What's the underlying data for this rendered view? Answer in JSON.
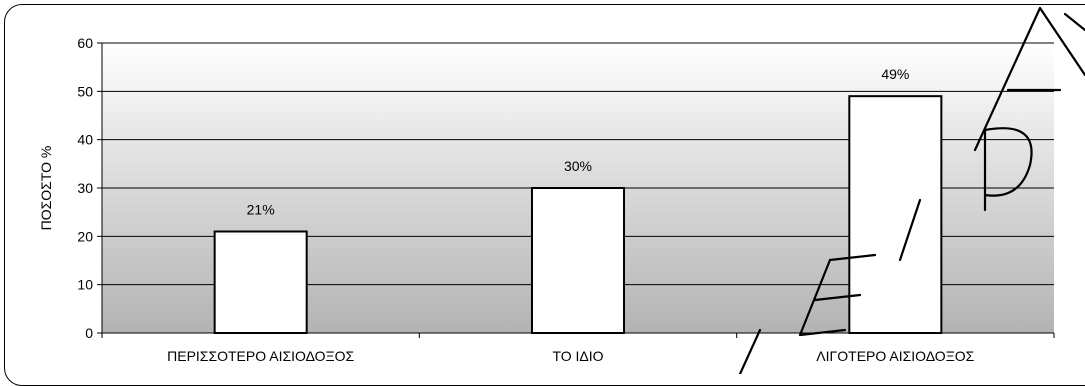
{
  "chart_data": {
    "type": "bar",
    "categories": [
      "ΠΕΡΙΣΣΟΤΕΡΟ ΑΙΣΙΟΔΟΞΟΣ",
      "ΤΟ ΙΔΙΟ",
      "ΛΙΓΟΤΕΡΟ ΑΙΣΙΟΔΟΞΟΣ"
    ],
    "values": [
      21,
      30,
      49
    ],
    "data_labels": [
      "21%",
      "30%",
      "49%"
    ],
    "title": "",
    "xlabel": "",
    "ylabel": "ΠΟΣΟΣΤΟ %",
    "ylim": [
      0,
      60
    ],
    "yticks": [
      0,
      10,
      20,
      30,
      40,
      50,
      60
    ],
    "grid": true,
    "legend": "none",
    "colors": {
      "bar_fill": "#ffffff",
      "bar_stroke": "#000000",
      "plot_bg_top": "#ffffff",
      "plot_bg_bottom": "#b3b3b3",
      "gridline": "#000000"
    }
  },
  "watermark": {
    "text": "ΤΕΙΡΑΙΑ",
    "color": "#000000"
  }
}
